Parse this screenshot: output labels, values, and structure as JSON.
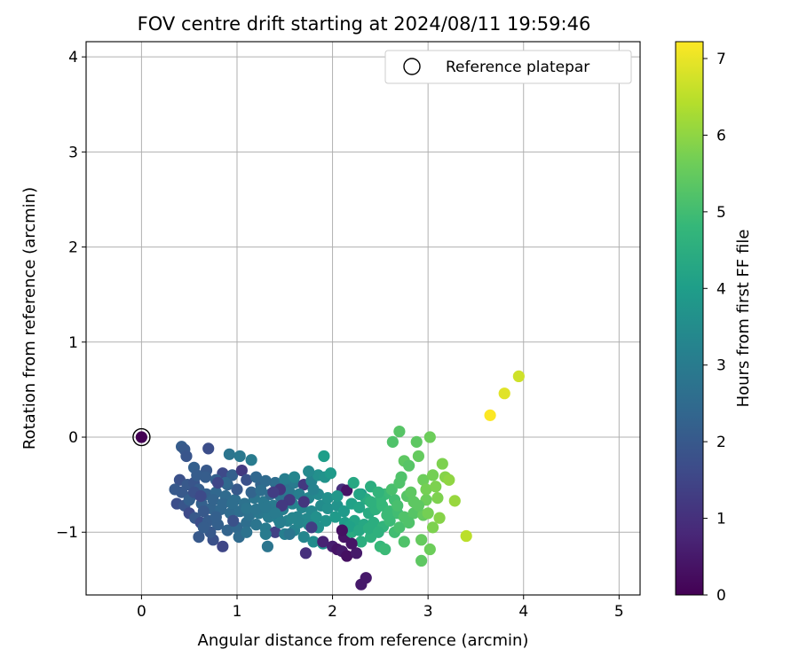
{
  "chart_data": {
    "type": "scatter",
    "title": "FOV centre drift starting at 2024/08/11 19:59:46",
    "xlabel": "Angular distance from reference (arcmin)",
    "ylabel": "Rotation from reference (arcmin)",
    "xlim": [
      -0.58,
      5.22
    ],
    "ylim": [
      -1.66,
      4.16
    ],
    "xticks": [
      "0",
      "1",
      "2",
      "3",
      "4",
      "5"
    ],
    "yticks": [
      "−1",
      "0",
      "1",
      "2",
      "3",
      "4"
    ],
    "xtick_values": [
      0,
      1,
      2,
      3,
      4,
      5
    ],
    "ytick_values": [
      -1,
      0,
      1,
      2,
      3,
      4
    ],
    "grid": true,
    "legend": {
      "position": "top-right",
      "entries": [
        "Reference platepar"
      ]
    },
    "colorbar": {
      "label": "Hours from first FF file",
      "colormap": "viridis",
      "range": [
        0,
        7.22
      ],
      "ticks": [
        "0",
        "1",
        "2",
        "3",
        "4",
        "5",
        "6",
        "7"
      ],
      "tick_values": [
        0,
        1,
        2,
        3,
        4,
        5,
        6,
        7
      ]
    },
    "reference_point": {
      "x": 0,
      "y": 0,
      "hours": 0
    },
    "points_columns": [
      "x",
      "y",
      "hours"
    ],
    "points": [
      [
        0.42,
        -0.1,
        2.1
      ],
      [
        0.45,
        -0.13,
        2.0
      ],
      [
        0.7,
        -0.12,
        1.7
      ],
      [
        0.47,
        -0.2,
        1.9
      ],
      [
        0.92,
        -0.18,
        2.8
      ],
      [
        1.03,
        -0.2,
        2.9
      ],
      [
        1.15,
        -0.24,
        3.0
      ],
      [
        0.55,
        -0.32,
        2.2
      ],
      [
        0.68,
        -0.35,
        2.0
      ],
      [
        0.85,
        -0.38,
        1.6
      ],
      [
        0.95,
        -0.4,
        2.2
      ],
      [
        1.05,
        -0.35,
        1.2
      ],
      [
        1.1,
        -0.45,
        1.8
      ],
      [
        1.25,
        -0.5,
        2.3
      ],
      [
        1.4,
        -0.48,
        2.6
      ],
      [
        1.5,
        -0.5,
        2.8
      ],
      [
        1.6,
        -0.48,
        3.0
      ],
      [
        1.7,
        -0.5,
        1.2
      ],
      [
        1.78,
        -0.46,
        3.2
      ],
      [
        1.85,
        -0.4,
        3.6
      ],
      [
        1.92,
        -0.42,
        3.7
      ],
      [
        1.98,
        -0.38,
        3.9
      ],
      [
        2.1,
        -0.55,
        1.0
      ],
      [
        2.15,
        -0.56,
        0.4
      ],
      [
        2.3,
        -0.6,
        3.9
      ],
      [
        2.35,
        -0.65,
        4.4
      ],
      [
        1.91,
        -0.2,
        4.0
      ],
      [
        0.4,
        -0.45,
        1.8
      ],
      [
        0.48,
        -0.5,
        2.0
      ],
      [
        0.55,
        -0.48,
        1.9
      ],
      [
        0.6,
        -0.55,
        2.1
      ],
      [
        0.68,
        -0.6,
        2.2
      ],
      [
        0.78,
        -0.58,
        2.4
      ],
      [
        0.88,
        -0.62,
        2.5
      ],
      [
        0.98,
        -0.66,
        2.6
      ],
      [
        1.08,
        -0.7,
        2.7
      ],
      [
        1.18,
        -0.64,
        2.8
      ],
      [
        1.28,
        -0.68,
        2.9
      ],
      [
        1.38,
        -0.72,
        3.0
      ],
      [
        1.48,
        -0.76,
        3.1
      ],
      [
        1.58,
        -0.7,
        3.2
      ],
      [
        1.68,
        -0.74,
        3.3
      ],
      [
        1.78,
        -0.78,
        3.4
      ],
      [
        1.88,
        -0.72,
        3.5
      ],
      [
        1.95,
        -0.75,
        3.6
      ],
      [
        2.05,
        -0.72,
        3.7
      ],
      [
        2.12,
        -0.78,
        3.9
      ],
      [
        2.2,
        -0.7,
        4.1
      ],
      [
        2.28,
        -0.74,
        4.2
      ],
      [
        2.38,
        -0.8,
        4.4
      ],
      [
        2.45,
        -0.76,
        4.6
      ],
      [
        2.52,
        -0.72,
        4.8
      ],
      [
        2.6,
        -0.78,
        4.9
      ],
      [
        2.68,
        -0.8,
        5.0
      ],
      [
        2.75,
        -0.84,
        5.2
      ],
      [
        2.85,
        -0.8,
        5.3
      ],
      [
        2.95,
        -0.82,
        5.5
      ],
      [
        0.37,
        -0.7,
        1.7
      ],
      [
        0.45,
        -0.72,
        1.9
      ],
      [
        0.5,
        -0.8,
        1.6
      ],
      [
        0.56,
        -0.85,
        2.0
      ],
      [
        0.62,
        -0.9,
        1.7
      ],
      [
        0.7,
        -0.88,
        2.1
      ],
      [
        0.8,
        -0.92,
        2.2
      ],
      [
        0.9,
        -0.98,
        2.3
      ],
      [
        1.0,
        -0.95,
        2.4
      ],
      [
        1.1,
        -0.9,
        2.6
      ],
      [
        1.2,
        -0.92,
        2.8
      ],
      [
        1.3,
        -0.96,
        3.0
      ],
      [
        1.4,
        -1.0,
        1.4
      ],
      [
        1.5,
        -1.02,
        3.1
      ],
      [
        1.6,
        -0.98,
        3.2
      ],
      [
        1.7,
        -1.05,
        3.3
      ],
      [
        1.8,
        -1.1,
        3.5
      ],
      [
        1.9,
        -1.12,
        3.7
      ],
      [
        2.0,
        -1.15,
        0.6
      ],
      [
        2.05,
        -1.18,
        0.4
      ],
      [
        2.1,
        -1.2,
        0.5
      ],
      [
        2.15,
        -1.25,
        0.3
      ],
      [
        2.25,
        -1.22,
        0.5
      ],
      [
        2.3,
        -1.55,
        0.5
      ],
      [
        2.35,
        -1.48,
        0.5
      ],
      [
        1.72,
        -1.22,
        1.0
      ],
      [
        0.6,
        -1.05,
        2.0
      ],
      [
        0.75,
        -1.08,
        1.8
      ],
      [
        0.85,
        -1.15,
        1.5
      ],
      [
        1.02,
        -1.05,
        2.5
      ],
      [
        1.32,
        -1.15,
        2.8
      ],
      [
        1.55,
        -1.02,
        2.8
      ],
      [
        2.12,
        -1.05,
        0.4
      ],
      [
        2.2,
        -1.0,
        4.4
      ],
      [
        2.3,
        -1.1,
        4.5
      ],
      [
        2.4,
        -1.05,
        4.6
      ],
      [
        2.5,
        -1.15,
        4.8
      ],
      [
        2.55,
        -1.18,
        4.9
      ],
      [
        2.65,
        -1.0,
        5.0
      ],
      [
        2.75,
        -1.1,
        5.2
      ],
      [
        2.93,
        -1.08,
        5.5
      ],
      [
        3.02,
        -1.18,
        5.6
      ],
      [
        2.93,
        -1.3,
        5.4
      ],
      [
        2.72,
        -0.42,
        5.2
      ],
      [
        2.75,
        -0.25,
        5.4
      ],
      [
        2.8,
        -0.3,
        5.3
      ],
      [
        2.9,
        -0.2,
        5.5
      ],
      [
        2.88,
        -0.05,
        5.4
      ],
      [
        3.02,
        0.0,
        5.6
      ],
      [
        2.63,
        -0.05,
        5.2
      ],
      [
        2.7,
        0.06,
        5.3
      ],
      [
        2.95,
        -0.45,
        5.6
      ],
      [
        3.05,
        -0.4,
        5.7
      ],
      [
        3.15,
        -0.28,
        5.8
      ],
      [
        3.18,
        -0.42,
        5.9
      ],
      [
        3.1,
        -0.64,
        5.8
      ],
      [
        3.28,
        -0.67,
        6.1
      ],
      [
        3.05,
        -0.95,
        5.8
      ],
      [
        3.12,
        -0.85,
        5.9
      ],
      [
        3.0,
        -0.8,
        5.7
      ],
      [
        2.78,
        -0.62,
        5.3
      ],
      [
        2.65,
        -0.66,
        5.0
      ],
      [
        2.55,
        -0.6,
        4.9
      ],
      [
        2.5,
        -0.66,
        4.8
      ],
      [
        3.4,
        -1.04,
        6.5
      ],
      [
        3.65,
        0.23,
        7.2
      ],
      [
        3.8,
        0.46,
        6.9
      ],
      [
        3.95,
        0.64,
        6.7
      ],
      [
        0.52,
        -0.62,
        2.0
      ],
      [
        0.63,
        -0.7,
        2.2
      ],
      [
        0.73,
        -0.75,
        2.3
      ],
      [
        0.83,
        -0.76,
        2.4
      ],
      [
        0.93,
        -0.8,
        2.5
      ],
      [
        1.03,
        -0.78,
        2.6
      ],
      [
        1.13,
        -0.82,
        2.7
      ],
      [
        1.23,
        -0.8,
        2.9
      ],
      [
        1.33,
        -0.84,
        3.0
      ],
      [
        1.43,
        -0.86,
        3.1
      ],
      [
        1.53,
        -0.88,
        3.2
      ],
      [
        1.63,
        -0.84,
        3.3
      ],
      [
        1.73,
        -0.86,
        3.4
      ],
      [
        1.83,
        -0.84,
        3.6
      ],
      [
        1.93,
        -0.88,
        3.7
      ],
      [
        2.03,
        -0.84,
        3.9
      ],
      [
        2.13,
        -0.9,
        4.0
      ],
      [
        2.23,
        -0.88,
        4.2
      ],
      [
        2.33,
        -0.92,
        4.3
      ],
      [
        2.43,
        -0.9,
        4.5
      ],
      [
        2.53,
        -0.94,
        4.7
      ],
      [
        1.0,
        -0.55,
        2.0
      ],
      [
        1.15,
        -0.58,
        2.3
      ],
      [
        1.35,
        -0.6,
        2.5
      ],
      [
        1.45,
        -0.62,
        2.7
      ],
      [
        1.55,
        -0.58,
        2.9
      ],
      [
        1.65,
        -0.6,
        3.1
      ],
      [
        1.75,
        -0.64,
        3.3
      ],
      [
        1.85,
        -0.6,
        3.4
      ],
      [
        1.95,
        -0.64,
        3.6
      ],
      [
        2.05,
        -0.62,
        3.8
      ],
      [
        0.67,
        -0.42,
        2.1
      ],
      [
        0.78,
        -0.45,
        2.2
      ],
      [
        0.9,
        -0.5,
        2.3
      ],
      [
        1.2,
        -0.42,
        2.4
      ],
      [
        1.3,
        -0.46,
        2.5
      ],
      [
        1.5,
        -0.44,
        3.1
      ],
      [
        1.6,
        -0.42,
        3.3
      ],
      [
        1.75,
        -0.36,
        3.4
      ],
      [
        2.22,
        -0.48,
        4.3
      ],
      [
        2.28,
        -0.6,
        4.2
      ],
      [
        2.4,
        -0.52,
        4.5
      ],
      [
        2.62,
        -0.55,
        5.1
      ],
      [
        2.7,
        -0.48,
        5.2
      ],
      [
        2.82,
        -0.58,
        5.4
      ],
      [
        2.98,
        -0.66,
        5.6
      ],
      [
        3.22,
        -0.45,
        6.0
      ],
      [
        2.98,
        -0.55,
        5.7
      ],
      [
        2.6,
        -0.88,
        4.9
      ],
      [
        2.7,
        -0.95,
        5.1
      ],
      [
        2.8,
        -0.9,
        5.2
      ],
      [
        0.58,
        -0.4,
        2.1
      ],
      [
        0.88,
        -0.48,
        2.4
      ],
      [
        1.45,
        -0.55,
        1.1
      ],
      [
        1.55,
        -0.66,
        1.2
      ],
      [
        1.8,
        -0.55,
        3.2
      ],
      [
        1.38,
        -0.58,
        1.3
      ],
      [
        1.47,
        -0.72,
        1.2
      ],
      [
        0.96,
        -0.88,
        1.8
      ],
      [
        0.42,
        -0.58,
        2.0
      ],
      [
        0.5,
        -0.66,
        2.2
      ],
      [
        0.65,
        -0.78,
        2.0
      ],
      [
        0.75,
        -0.66,
        2.3
      ],
      [
        0.85,
        -0.7,
        2.4
      ],
      [
        0.95,
        -0.7,
        2.6
      ],
      [
        1.1,
        -0.75,
        2.8
      ],
      [
        1.2,
        -0.76,
        2.8
      ],
      [
        1.3,
        -0.74,
        2.9
      ],
      [
        1.4,
        -0.8,
        3.0
      ],
      [
        1.65,
        -0.9,
        3.3
      ],
      [
        1.75,
        -0.92,
        3.4
      ],
      [
        1.85,
        -0.95,
        3.6
      ],
      [
        2.18,
        -0.94,
        4.1
      ],
      [
        2.28,
        -0.98,
        4.3
      ],
      [
        2.38,
        -0.96,
        4.5
      ],
      [
        2.48,
        -1.0,
        4.6
      ],
      [
        0.35,
        -0.55,
        2.0
      ],
      [
        0.55,
        -0.58,
        1.8
      ],
      [
        0.62,
        -0.62,
        1.6
      ],
      [
        0.8,
        -0.48,
        1.5
      ],
      [
        1.25,
        -0.56,
        2.6
      ],
      [
        1.7,
        -0.68,
        1.1
      ],
      [
        2.1,
        -0.98,
        0.3
      ],
      [
        2.2,
        -1.12,
        0.4
      ],
      [
        1.9,
        -1.1,
        0.7
      ],
      [
        1.78,
        -0.95,
        1.3
      ],
      [
        0.72,
        -1.0,
        2.0
      ],
      [
        0.65,
        -0.95,
        2.1
      ],
      [
        0.78,
        -0.84,
        2.2
      ],
      [
        1.1,
        -1.0,
        2.7
      ],
      [
        1.3,
        -1.02,
        3.0
      ],
      [
        1.45,
        -0.9,
        3.1
      ],
      [
        1.58,
        -0.85,
        3.3
      ],
      [
        2.4,
        -0.68,
        4.6
      ],
      [
        2.48,
        -0.58,
        4.7
      ],
      [
        2.57,
        -0.82,
        4.9
      ],
      [
        2.68,
        -0.72,
        5.1
      ],
      [
        2.85,
        -0.68,
        5.4
      ],
      [
        2.9,
        -0.72,
        5.4
      ],
      [
        3.08,
        -0.52,
        5.8
      ]
    ]
  }
}
